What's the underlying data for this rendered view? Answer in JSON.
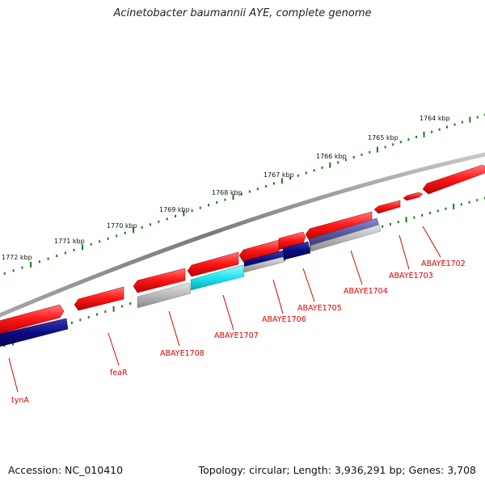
{
  "title": "Acinetobacter baumannii AYE, complete genome",
  "footer": {
    "accession": "Accession: NC_010410",
    "summary": "Topology: circular; Length: 3,936,291 bp; Genes: 3,708"
  },
  "ruler": [
    "1772 kbp",
    "1771 kbp",
    "1770 kbp",
    "1769 kbp",
    "1768 kbp",
    "1767 kbp",
    "1766 kbp",
    "1765 kbp",
    "1764 kbp"
  ],
  "gene_labels": [
    "tynA",
    "feaR",
    "ABAYE1708",
    "ABAYE1707",
    "ABAYE1706",
    "ABAYE1705",
    "ABAYE1704",
    "ABAYE1703",
    "ABAYE1702"
  ],
  "colors": {
    "cds": "#ff1a1a",
    "backbone": "#8a8a8a",
    "tick": "#1e7a1e",
    "label": "#e00000",
    "navy": "#0a0a80",
    "cyan": "#1ee6ee",
    "gray": "#b8b8b8",
    "slate": "#5a5aa0"
  }
}
